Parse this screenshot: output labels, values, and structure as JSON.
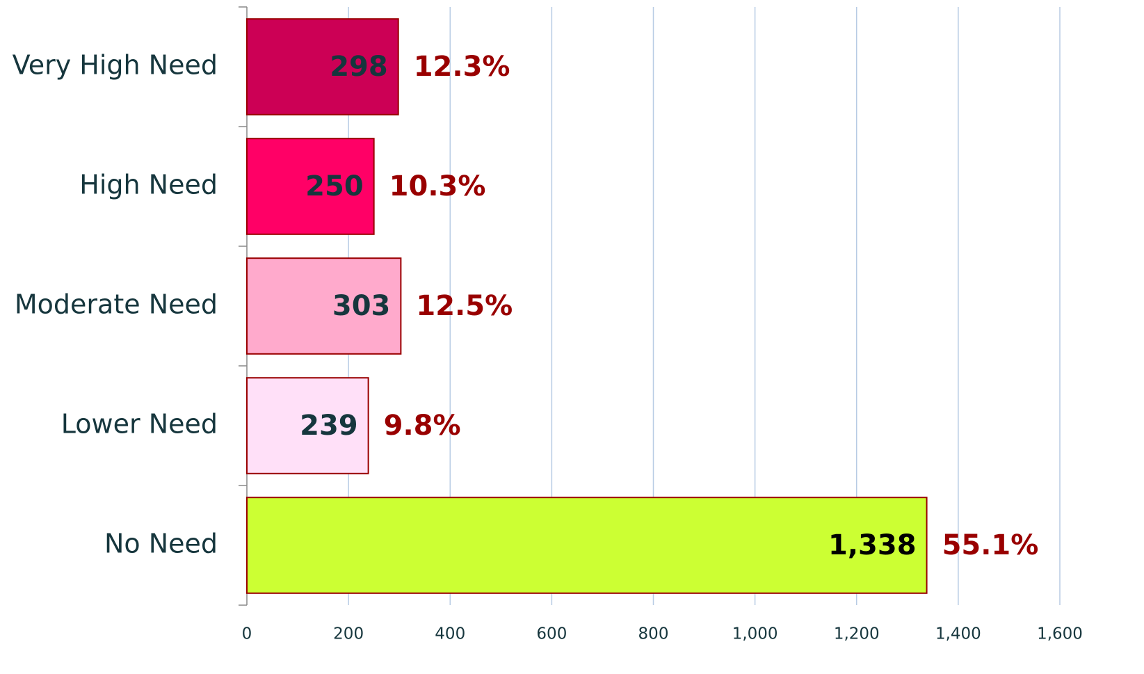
{
  "chart_data": {
    "type": "hbar",
    "categories": [
      "Very High Need",
      "High Need",
      "Moderate Need",
      "Lower Need",
      "No Need"
    ],
    "values": [
      298,
      250,
      303,
      239,
      1338
    ],
    "value_labels": [
      "298",
      "250",
      "303",
      "239",
      "1,338"
    ],
    "percent_labels": [
      "12.3%",
      "10.3%",
      "12.5%",
      "9.8%",
      "55.1%"
    ],
    "colors": [
      "#cc0055",
      "#ff0066",
      "#ffaacc",
      "#ffe0f8",
      "#ccff33"
    ],
    "value_label_colors": [
      "#16363d",
      "#16363d",
      "#16363d",
      "#16363d",
      "#000000"
    ],
    "percent_label_color": "#990000",
    "bar_edge_color": "#990000",
    "xlim": [
      0,
      1600
    ],
    "xticks": [
      0,
      200,
      400,
      600,
      800,
      {
        "value": 1000,
        "label": "1,000"
      },
      {
        "value": 1200,
        "label": "1,200"
      },
      {
        "value": 1400,
        "label": "1,400"
      },
      {
        "value": 1600,
        "label": "1,600"
      }
    ],
    "grid": true
  }
}
